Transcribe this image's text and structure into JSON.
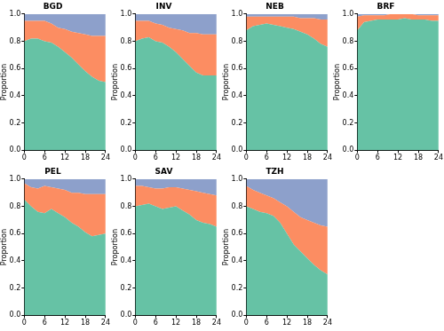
{
  "chart_data": [
    {
      "type": "area",
      "title": "BGD",
      "y_label": "Proportion",
      "stacked": true,
      "grid": false,
      "x": [
        0,
        2,
        4,
        6,
        8,
        10,
        12,
        14,
        16,
        18,
        20,
        22,
        24
      ],
      "xlim": [
        0,
        24
      ],
      "xticks": [
        0,
        6,
        12,
        18,
        24
      ],
      "ylim": [
        0,
        1
      ],
      "yticks": [
        {
          "value": 0,
          "label": "0.0"
        },
        {
          "value": 0.2,
          "label": "0.2"
        },
        {
          "value": 0.4,
          "label": "0.4"
        },
        {
          "value": 0.6,
          "label": "0.6"
        },
        {
          "value": 0.8,
          "label": "0.8"
        },
        {
          "value": 1,
          "label": "1.0"
        }
      ],
      "series": [
        {
          "color": "#66c2a5",
          "values": [
            0.8,
            0.82,
            0.82,
            0.8,
            0.79,
            0.76,
            0.72,
            0.68,
            0.63,
            0.58,
            0.54,
            0.51,
            0.5
          ]
        },
        {
          "color": "#fc8d62",
          "values": [
            0.15,
            0.13,
            0.13,
            0.15,
            0.14,
            0.14,
            0.17,
            0.19,
            0.23,
            0.27,
            0.3,
            0.33,
            0.34
          ]
        },
        {
          "color": "#8da0cb",
          "values": [
            0.05,
            0.05,
            0.05,
            0.05,
            0.07,
            0.1,
            0.11,
            0.13,
            0.14,
            0.15,
            0.16,
            0.16,
            0.16
          ]
        }
      ]
    },
    {
      "type": "area",
      "title": "INV",
      "y_label": "Proportion",
      "stacked": true,
      "grid": false,
      "x": [
        0,
        2,
        4,
        6,
        8,
        10,
        12,
        14,
        16,
        18,
        20,
        22,
        24
      ],
      "xlim": [
        0,
        24
      ],
      "xticks": [
        0,
        6,
        12,
        18,
        24
      ],
      "ylim": [
        0,
        1
      ],
      "yticks": [
        {
          "value": 0,
          "label": "0.0"
        },
        {
          "value": 0.2,
          "label": "0.2"
        },
        {
          "value": 0.4,
          "label": "0.4"
        },
        {
          "value": 0.6,
          "label": "0.6"
        },
        {
          "value": 0.8,
          "label": "0.8"
        },
        {
          "value": 1,
          "label": "1.0"
        }
      ],
      "series": [
        {
          "color": "#66c2a5",
          "values": [
            0.8,
            0.82,
            0.83,
            0.8,
            0.79,
            0.76,
            0.72,
            0.67,
            0.62,
            0.57,
            0.55,
            0.55,
            0.55
          ]
        },
        {
          "color": "#fc8d62",
          "values": [
            0.15,
            0.13,
            0.12,
            0.13,
            0.13,
            0.14,
            0.17,
            0.21,
            0.24,
            0.29,
            0.3,
            0.3,
            0.3
          ]
        },
        {
          "color": "#8da0cb",
          "values": [
            0.05,
            0.05,
            0.05,
            0.07,
            0.08,
            0.1,
            0.11,
            0.12,
            0.14,
            0.14,
            0.15,
            0.15,
            0.15
          ]
        }
      ]
    },
    {
      "type": "area",
      "title": "NEB",
      "y_label": "Proportion",
      "stacked": true,
      "grid": false,
      "x": [
        0,
        2,
        4,
        6,
        8,
        10,
        12,
        14,
        16,
        18,
        20,
        22,
        24
      ],
      "xlim": [
        0,
        24
      ],
      "xticks": [
        0,
        6,
        12,
        18,
        24
      ],
      "ylim": [
        0,
        1
      ],
      "yticks": [
        {
          "value": 0,
          "label": "0.0"
        },
        {
          "value": 0.2,
          "label": "0.2"
        },
        {
          "value": 0.4,
          "label": "0.4"
        },
        {
          "value": 0.6,
          "label": "0.6"
        },
        {
          "value": 0.8,
          "label": "0.8"
        },
        {
          "value": 1,
          "label": "1.0"
        }
      ],
      "series": [
        {
          "color": "#66c2a5",
          "values": [
            0.88,
            0.91,
            0.92,
            0.93,
            0.92,
            0.91,
            0.9,
            0.89,
            0.87,
            0.85,
            0.82,
            0.78,
            0.76
          ]
        },
        {
          "color": "#fc8d62",
          "values": [
            0.1,
            0.07,
            0.06,
            0.05,
            0.06,
            0.07,
            0.08,
            0.09,
            0.1,
            0.12,
            0.15,
            0.18,
            0.2
          ]
        },
        {
          "color": "#8da0cb",
          "values": [
            0.02,
            0.02,
            0.02,
            0.02,
            0.02,
            0.02,
            0.02,
            0.02,
            0.03,
            0.03,
            0.03,
            0.04,
            0.04
          ]
        }
      ]
    },
    {
      "type": "area",
      "title": "BRF",
      "y_label": "Proportion",
      "stacked": true,
      "grid": false,
      "x": [
        0,
        2,
        4,
        6,
        8,
        10,
        12,
        14,
        16,
        18,
        20,
        22,
        24
      ],
      "xlim": [
        0,
        24
      ],
      "xticks": [
        0,
        6,
        12,
        18,
        24
      ],
      "ylim": [
        0,
        1
      ],
      "yticks": [
        {
          "value": 0,
          "label": "0.0"
        },
        {
          "value": 0.2,
          "label": "0.2"
        },
        {
          "value": 0.4,
          "label": "0.4"
        },
        {
          "value": 0.6,
          "label": "0.6"
        },
        {
          "value": 0.8,
          "label": "0.8"
        },
        {
          "value": 1,
          "label": "1.0"
        }
      ],
      "series": [
        {
          "color": "#66c2a5",
          "values": [
            0.88,
            0.94,
            0.95,
            0.96,
            0.96,
            0.96,
            0.96,
            0.97,
            0.96,
            0.96,
            0.96,
            0.95,
            0.95
          ]
        },
        {
          "color": "#fc8d62",
          "values": [
            0.1,
            0.05,
            0.04,
            0.03,
            0.03,
            0.04,
            0.04,
            0.03,
            0.04,
            0.03,
            0.03,
            0.04,
            0.04
          ]
        },
        {
          "color": "#8da0cb",
          "values": [
            0.02,
            0.01,
            0.01,
            0.01,
            0.01,
            0,
            0,
            0,
            0,
            0.01,
            0.01,
            0.01,
            0.01
          ]
        }
      ]
    },
    {
      "type": "area",
      "title": "PEL",
      "y_label": "Proportion",
      "stacked": true,
      "grid": false,
      "x": [
        0,
        2,
        4,
        6,
        8,
        10,
        12,
        14,
        16,
        18,
        20,
        22,
        24
      ],
      "xlim": [
        0,
        24
      ],
      "xticks": [
        0,
        6,
        12,
        18,
        24
      ],
      "ylim": [
        0,
        1
      ],
      "yticks": [
        {
          "value": 0,
          "label": "0.0"
        },
        {
          "value": 0.2,
          "label": "0.2"
        },
        {
          "value": 0.4,
          "label": "0.4"
        },
        {
          "value": 0.6,
          "label": "0.6"
        },
        {
          "value": 0.8,
          "label": "0.8"
        },
        {
          "value": 1,
          "label": "1.0"
        }
      ],
      "series": [
        {
          "color": "#66c2a5",
          "values": [
            0.85,
            0.8,
            0.76,
            0.75,
            0.78,
            0.75,
            0.72,
            0.68,
            0.65,
            0.61,
            0.58,
            0.59,
            0.6
          ]
        },
        {
          "color": "#fc8d62",
          "values": [
            0.12,
            0.14,
            0.17,
            0.2,
            0.16,
            0.18,
            0.2,
            0.22,
            0.25,
            0.28,
            0.31,
            0.3,
            0.29
          ]
        },
        {
          "color": "#8da0cb",
          "values": [
            0.03,
            0.06,
            0.07,
            0.05,
            0.06,
            0.07,
            0.08,
            0.1,
            0.1,
            0.11,
            0.11,
            0.11,
            0.11
          ]
        }
      ]
    },
    {
      "type": "area",
      "title": "SAV",
      "y_label": "Proportion",
      "stacked": true,
      "grid": false,
      "x": [
        0,
        2,
        4,
        6,
        8,
        10,
        12,
        14,
        16,
        18,
        20,
        22,
        24
      ],
      "xlim": [
        0,
        24
      ],
      "xticks": [
        0,
        6,
        12,
        18,
        24
      ],
      "ylim": [
        0,
        1
      ],
      "yticks": [
        {
          "value": 0,
          "label": "0.0"
        },
        {
          "value": 0.2,
          "label": "0.2"
        },
        {
          "value": 0.4,
          "label": "0.4"
        },
        {
          "value": 0.6,
          "label": "0.6"
        },
        {
          "value": 0.8,
          "label": "0.8"
        },
        {
          "value": 1,
          "label": "1.0"
        }
      ],
      "series": [
        {
          "color": "#66c2a5",
          "values": [
            0.8,
            0.81,
            0.82,
            0.8,
            0.78,
            0.79,
            0.8,
            0.77,
            0.74,
            0.7,
            0.68,
            0.67,
            0.65
          ]
        },
        {
          "color": "#fc8d62",
          "values": [
            0.15,
            0.14,
            0.12,
            0.13,
            0.15,
            0.15,
            0.14,
            0.16,
            0.18,
            0.21,
            0.22,
            0.22,
            0.23
          ]
        },
        {
          "color": "#8da0cb",
          "values": [
            0.05,
            0.05,
            0.06,
            0.07,
            0.07,
            0.06,
            0.06,
            0.07,
            0.08,
            0.09,
            0.1,
            0.11,
            0.12
          ]
        }
      ]
    },
    {
      "type": "area",
      "title": "TZH",
      "y_label": "Proportion",
      "stacked": true,
      "grid": false,
      "x": [
        0,
        2,
        4,
        6,
        8,
        10,
        12,
        14,
        16,
        18,
        20,
        22,
        24
      ],
      "xlim": [
        0,
        24
      ],
      "xticks": [
        0,
        6,
        12,
        18,
        24
      ],
      "ylim": [
        0,
        1
      ],
      "yticks": [
        {
          "value": 0,
          "label": "0.0"
        },
        {
          "value": 0.2,
          "label": "0.2"
        },
        {
          "value": 0.4,
          "label": "0.4"
        },
        {
          "value": 0.6,
          "label": "0.6"
        },
        {
          "value": 0.8,
          "label": "0.8"
        },
        {
          "value": 1,
          "label": "1.0"
        }
      ],
      "series": [
        {
          "color": "#66c2a5",
          "values": [
            0.8,
            0.78,
            0.76,
            0.75,
            0.73,
            0.68,
            0.6,
            0.52,
            0.47,
            0.42,
            0.37,
            0.33,
            0.3
          ]
        },
        {
          "color": "#fc8d62",
          "values": [
            0.15,
            0.14,
            0.14,
            0.13,
            0.13,
            0.15,
            0.2,
            0.24,
            0.25,
            0.28,
            0.31,
            0.33,
            0.35
          ]
        },
        {
          "color": "#8da0cb",
          "values": [
            0.05,
            0.08,
            0.1,
            0.12,
            0.14,
            0.17,
            0.2,
            0.24,
            0.28,
            0.3,
            0.32,
            0.34,
            0.35
          ]
        }
      ]
    }
  ]
}
